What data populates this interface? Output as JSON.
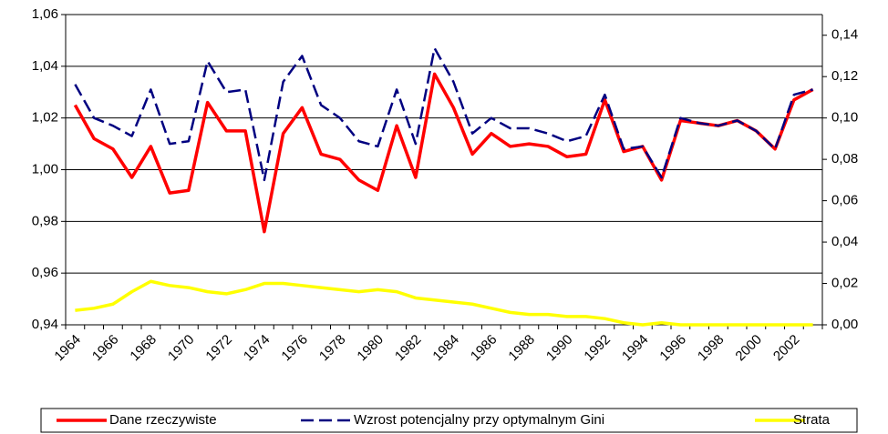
{
  "chart_data": {
    "type": "line",
    "categories": [
      "1964",
      null,
      "1966",
      null,
      "1968",
      null,
      "1970",
      null,
      "1972",
      null,
      "1974",
      null,
      "1976",
      null,
      "1978",
      null,
      "1980",
      null,
      "1982",
      null,
      "1984",
      null,
      "1986",
      null,
      "1988",
      null,
      "1990",
      null,
      "1992",
      null,
      "1994",
      null,
      "1996",
      null,
      "1998",
      null,
      "2000",
      null,
      "2002",
      null
    ],
    "series": [
      {
        "name": "Dane rzeczywiste",
        "color": "#ff0000",
        "values": [
          1.025,
          1.012,
          1.008,
          0.997,
          1.009,
          0.991,
          0.992,
          1.026,
          1.015,
          1.015,
          0.976,
          1.014,
          1.024,
          1.006,
          1.004,
          0.996,
          0.992,
          1.017,
          0.997,
          1.037,
          1.024,
          1.006,
          1.014,
          1.009,
          1.01,
          1.009,
          1.005,
          1.006,
          1.027,
          1.007,
          1.009,
          0.996,
          1.019,
          1.018,
          1.017,
          1.019,
          1.015,
          1.008,
          1.027,
          1.031
        ]
      },
      {
        "name": "Wzrost potencjalny przy optymalnym Gini",
        "color": "#000080",
        "dashed": true,
        "values": [
          1.033,
          1.02,
          1.017,
          1.013,
          1.031,
          1.01,
          1.011,
          1.042,
          1.03,
          1.031,
          0.996,
          1.034,
          1.044,
          1.025,
          1.02,
          1.011,
          1.009,
          1.031,
          1.01,
          1.047,
          1.034,
          1.014,
          1.02,
          1.016,
          1.016,
          1.014,
          1.011,
          1.013,
          1.029,
          1.008,
          1.009,
          0.997,
          1.02,
          1.018,
          1.017,
          1.019,
          1.015,
          1.008,
          1.029,
          1.031
        ]
      },
      {
        "name": "Strata",
        "color": "#ffff00",
        "axis": "y2",
        "values": [
          0.007,
          0.008,
          0.01,
          0.016,
          0.021,
          0.019,
          0.018,
          0.016,
          0.015,
          0.017,
          0.02,
          0.02,
          0.019,
          0.018,
          0.017,
          0.016,
          0.017,
          0.016,
          0.013,
          0.012,
          0.011,
          0.01,
          0.008,
          0.006,
          0.005,
          0.005,
          0.004,
          0.004,
          0.003,
          0.001,
          0,
          0.001,
          0,
          0,
          0,
          0,
          0,
          0,
          0,
          0
        ]
      }
    ],
    "ylim": [
      0.94,
      1.06
    ],
    "yticks": [
      {
        "value": 0.94,
        "label": "0,94"
      },
      {
        "value": 0.96,
        "label": "0,96"
      },
      {
        "value": 0.98,
        "label": "0,98"
      },
      {
        "value": 1.0,
        "label": "1,00"
      },
      {
        "value": 1.02,
        "label": "1,02"
      },
      {
        "value": 1.04,
        "label": "1,04"
      },
      {
        "value": 1.06,
        "label": "1,06"
      }
    ],
    "y2lim": [
      0,
      0.15
    ],
    "y2ticks": [
      {
        "value": 0,
        "label": "0,00"
      },
      {
        "value": 0.02,
        "label": "0,02"
      },
      {
        "value": 0.04,
        "label": "0,04"
      },
      {
        "value": 0.06,
        "label": "0,06"
      },
      {
        "value": 0.08,
        "label": "0,08"
      },
      {
        "value": 0.1,
        "label": "0,10"
      },
      {
        "value": 0.12,
        "label": "0,12"
      },
      {
        "value": 0.14,
        "label": "0,14"
      }
    ],
    "grid": true,
    "legend": "bottom"
  }
}
